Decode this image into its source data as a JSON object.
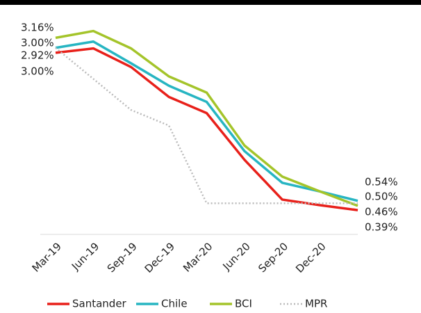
{
  "chart_data": {
    "type": "line",
    "categories": [
      "Mar-19",
      "Jun-19",
      "Sep-19",
      "Dec-19",
      "Mar-20",
      "Jun-20",
      "Sep-20",
      "Dec-20",
      null
    ],
    "series": [
      {
        "name": "Santander",
        "color": "#e8201a",
        "values": [
          2.92,
          2.99,
          2.69,
          2.21,
          1.95,
          1.2,
          0.56,
          0.47,
          0.39
        ],
        "value_labels": [
          "2.92%",
          null,
          null,
          null,
          null,
          null,
          null,
          null,
          "0.39%"
        ]
      },
      {
        "name": "Chile",
        "color": "#27b5c2",
        "values": [
          3.0,
          3.1,
          2.75,
          2.39,
          2.13,
          1.34,
          0.83,
          0.69,
          0.54
        ],
        "value_labels": [
          "3.00%",
          null,
          null,
          null,
          null,
          null,
          null,
          null,
          "0.54%"
        ]
      },
      {
        "name": "BCI",
        "color": "#a4c42a",
        "values": [
          3.16,
          3.27,
          2.99,
          2.54,
          2.28,
          1.43,
          0.93,
          0.69,
          0.46
        ],
        "value_labels": [
          "3.16%",
          null,
          null,
          null,
          null,
          null,
          null,
          null,
          "0.46%"
        ]
      },
      {
        "name": "MPR",
        "color": "#bbbbbb",
        "dashed": true,
        "label_color": "#333333",
        "values": [
          3.0,
          2.5,
          2.0,
          1.75,
          0.5,
          0.5,
          0.5,
          0.5,
          0.5
        ],
        "value_labels": [
          "3.00%",
          null,
          null,
          null,
          null,
          null,
          null,
          null,
          "0.50%"
        ]
      }
    ],
    "ylim": [
      0,
      3.5
    ],
    "legend": "bottom"
  }
}
